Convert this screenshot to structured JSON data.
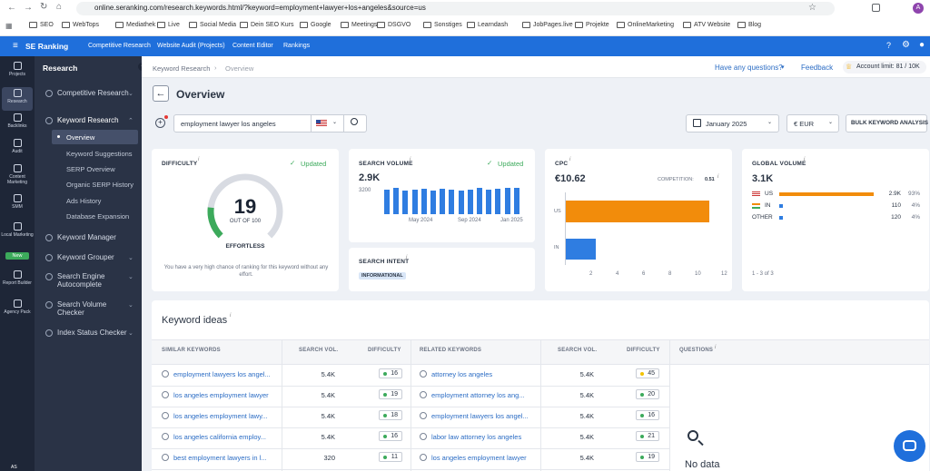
{
  "browser": {
    "url": "online.seranking.com/research.keywords.html/?keyword=employment+lawyer+los+angeles&source=us",
    "avatar": "A",
    "bookmarks": [
      "SEO",
      "WebTops",
      "Mediathek",
      "Live",
      "Social Media",
      "Dein SEO Kurs",
      "Google",
      "Meetings",
      "DSGVO",
      "Sonstiges",
      "Learndash",
      "JobPages.live",
      "Projekte",
      "OnlineMarketing",
      "ATV Website",
      "Blog"
    ]
  },
  "nav": {
    "brand": "SE Ranking",
    "items": [
      "Competitive Research",
      "Website Audit (Projects)",
      "Content Editor",
      "Rankings"
    ]
  },
  "rail": [
    "Projects",
    "Research",
    "Backlinks",
    "Audit",
    "Content Marketing",
    "SMM",
    "Local Marketing",
    "Report Builder",
    "Agency Pack"
  ],
  "rail_badge": "New",
  "rail_bottom": "AS",
  "panel": {
    "title": "Research",
    "items": [
      "Competitive Research",
      "Keyword Research",
      "Keyword Manager",
      "Keyword Grouper",
      "Search Engine Autocomplete",
      "Search Volume Checker",
      "Index Status Checker"
    ],
    "sub": [
      "Overview",
      "Keyword Suggestions",
      "SERP Overview",
      "Organic SERP History",
      "Ads History",
      "Database Expansion"
    ]
  },
  "header": {
    "breadcrumb1": "Keyword Research",
    "breadcrumb2": "Overview",
    "questions": "Have any questions?",
    "feedback": "Feedback",
    "limit": "Account limit: 81 / 10K"
  },
  "page": {
    "title": "Overview",
    "search_value": "employment lawyer los angeles",
    "date": "January 2025",
    "currency": "€ EUR",
    "bulk": "BULK KEYWORD ANALYSIS"
  },
  "difficulty": {
    "label": "DIFFICULTY",
    "updated": "Updated",
    "value": "19",
    "out_of": "OUT OF 100",
    "rating": "EFFORTLESS",
    "note": "You have a very high chance of ranking for this keyword without any effort."
  },
  "volume": {
    "label": "SEARCH VOLUME",
    "updated": "Updated",
    "value": "2.9K",
    "ymax": "3200",
    "xlabels": [
      "May 2024",
      "Sep 2024",
      "Jan 2025"
    ]
  },
  "intent": {
    "label": "SEARCH INTENT",
    "tag": "INFORMATIONAL"
  },
  "cpc": {
    "label": "CPC",
    "value": "€10.62",
    "competition_label": "COMPETITION:",
    "competition": "0.51",
    "rows": [
      "US",
      "IN"
    ],
    "ticks": [
      "2",
      "4",
      "6",
      "8",
      "10",
      "12"
    ]
  },
  "global": {
    "label": "GLOBAL VOLUME",
    "value": "3.1K",
    "rows": [
      {
        "c": "US",
        "v": "2.9K",
        "p": "93%"
      },
      {
        "c": "IN",
        "v": "110",
        "p": "4%"
      },
      {
        "c": "OTHER",
        "v": "120",
        "p": "4%"
      }
    ],
    "footer": "1 - 3 of 3"
  },
  "ideas": {
    "title": "Keyword ideas",
    "h1": "SIMILAR KEYWORDS",
    "h2": "SEARCH VOL.",
    "h3": "DIFFICULTY",
    "h4": "RELATED KEYWORDS",
    "h5": "SEARCH VOL.",
    "h6": "DIFFICULTY",
    "h7": "QUESTIONS",
    "nodata": "No data",
    "similar": [
      {
        "k": "employment lawyers los angel...",
        "v": "5.4K",
        "d": "16"
      },
      {
        "k": "los angeles employment lawyer",
        "v": "5.4K",
        "d": "19"
      },
      {
        "k": "los angeles employment lawy...",
        "v": "5.4K",
        "d": "18"
      },
      {
        "k": "los angeles california employ...",
        "v": "5.4K",
        "d": "16"
      },
      {
        "k": "best employment lawyers in l...",
        "v": "320",
        "d": "11"
      }
    ],
    "related": [
      {
        "k": "attorney los angeles",
        "v": "5.4K",
        "d": "45"
      },
      {
        "k": "employment attorney los ang...",
        "v": "5.4K",
        "d": "20"
      },
      {
        "k": "employment lawyers los angel...",
        "v": "5.4K",
        "d": "16"
      },
      {
        "k": "labor law attorney los angeles",
        "v": "5.4K",
        "d": "21"
      },
      {
        "k": "los angeles employment lawyer",
        "v": "5.4K",
        "d": "19"
      }
    ]
  },
  "chart_data": [
    {
      "type": "bar",
      "title": "SEARCH VOLUME",
      "values": [
        2700,
        2900,
        2600,
        2700,
        2800,
        2600,
        2800,
        2700,
        2600,
        2700,
        2900,
        2700,
        2800,
        2900,
        2900
      ],
      "ylim": [
        0,
        3200
      ]
    },
    {
      "type": "bar",
      "title": "CPC",
      "categories": [
        "US",
        "IN"
      ],
      "values": [
        10.9,
        2.3
      ],
      "xlim": [
        0,
        12
      ]
    },
    {
      "type": "bar",
      "title": "GLOBAL VOLUME",
      "categories": [
        "US",
        "IN",
        "OTHER"
      ],
      "values": [
        93,
        4,
        4
      ]
    }
  ],
  "colors": {
    "accent": "#1f6fdb",
    "orange": "#f28c0b",
    "green": "#3caa5b",
    "yellow": "#f2c200"
  }
}
